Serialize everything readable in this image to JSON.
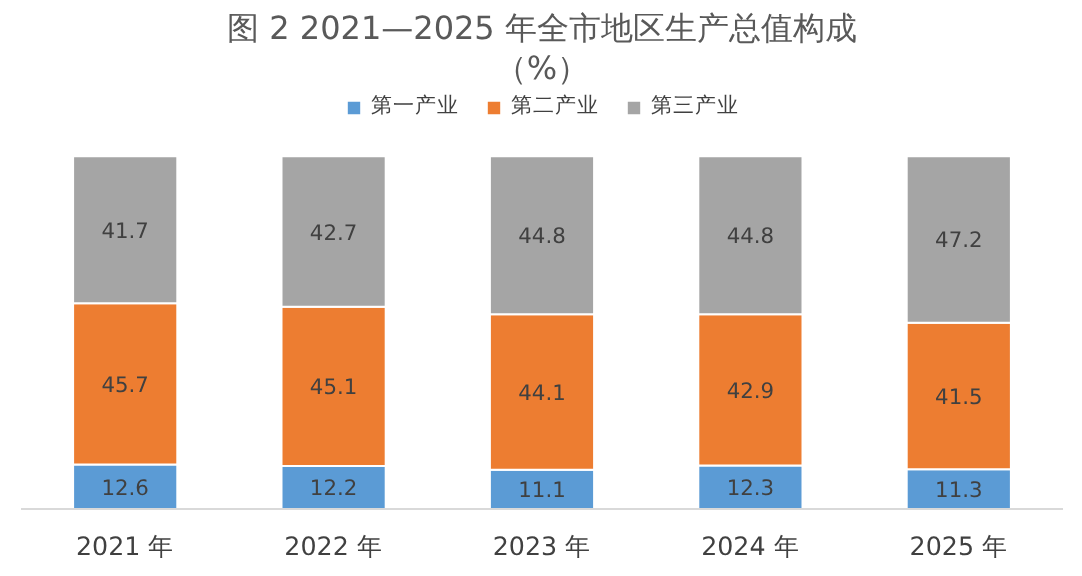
{
  "chart_data": {
    "type": "bar",
    "title": "图 2 2021—2025 年全市地区生产总值构成",
    "subtitle": "（%）",
    "categories": [
      "2021 年",
      "2022 年",
      "2023 年",
      "2024 年",
      "2025 年"
    ],
    "stacked": true,
    "data_labels": true,
    "legend": "top",
    "grid": false,
    "series": [
      {
        "name": "第一产业",
        "color": "#5b9bd5",
        "values": [
          12.6,
          12.2,
          11.1,
          12.3,
          11.3
        ]
      },
      {
        "name": "第二产业",
        "color": "#ed7d31",
        "values": [
          45.7,
          45.1,
          44.1,
          42.9,
          41.5
        ]
      },
      {
        "name": "第三产业",
        "color": "#a5a5a5",
        "values": [
          41.7,
          42.7,
          44.8,
          44.8,
          47.2
        ]
      }
    ]
  }
}
